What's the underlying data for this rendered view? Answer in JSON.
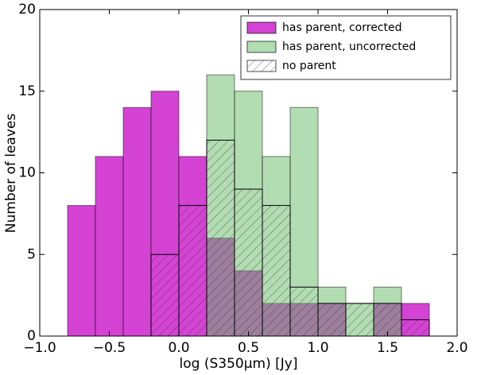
{
  "chart_data": {
    "type": "histogram",
    "xlabel": "log (S350μm) [Jy]",
    "ylabel": "Number of leaves",
    "bins": [
      -0.8,
      -0.6,
      -0.4,
      -0.2,
      0.0,
      0.2,
      0.4,
      0.6,
      0.8,
      1.0,
      1.2,
      1.4,
      1.6,
      1.8
    ],
    "series": [
      {
        "name": "has parent, corrected",
        "color": "#cc22cc",
        "values": [
          8,
          11,
          14,
          15,
          11,
          6,
          4,
          2,
          2,
          2,
          0,
          2,
          2
        ]
      },
      {
        "name": "has parent, uncorrected",
        "color": "#66bb66",
        "values": [
          0,
          0,
          0,
          0,
          0,
          16,
          15,
          11,
          14,
          3,
          2,
          3,
          0
        ]
      },
      {
        "name": "no parent",
        "color": "#444444",
        "hatch": true,
        "values": [
          0,
          0,
          0,
          5,
          8,
          12,
          9,
          8,
          3,
          2,
          2,
          2,
          1
        ]
      }
    ],
    "xlim": [
      -1.0,
      2.0
    ],
    "xticks": [
      {
        "value": -1.0,
        "label": "−1.0"
      },
      {
        "value": -0.5,
        "label": "−0.5"
      },
      {
        "value": 0.0,
        "label": "0.0"
      },
      {
        "value": 0.5,
        "label": "0.5"
      },
      {
        "value": 1.0,
        "label": "1.0"
      },
      {
        "value": 1.5,
        "label": "1.5"
      },
      {
        "value": 2.0,
        "label": "2.0"
      }
    ],
    "ylim": [
      0,
      20
    ],
    "yticks": [
      0,
      5,
      10,
      15,
      20
    ],
    "legend": "upper right"
  }
}
